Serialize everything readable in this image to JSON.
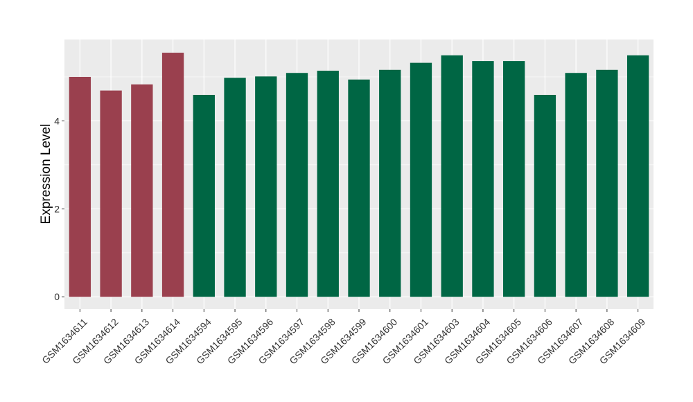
{
  "chart_data": {
    "type": "bar",
    "title": "",
    "xlabel": "",
    "ylabel": "Expression Level",
    "ylim": [
      -0.28,
      5.85
    ],
    "yticks": [
      0,
      2,
      4
    ],
    "grid": true,
    "legend": "none",
    "categories": [
      "GSM1634611",
      "GSM1634612",
      "GSM1634613",
      "GSM1634614",
      "GSM1634594",
      "GSM1634595",
      "GSM1634596",
      "GSM1634597",
      "GSM1634598",
      "GSM1634599",
      "GSM1634600",
      "GSM1634601",
      "GSM1634603",
      "GSM1634604",
      "GSM1634605",
      "GSM1634606",
      "GSM1634607",
      "GSM1634608",
      "GSM1634609"
    ],
    "values": [
      5.0,
      4.69,
      4.83,
      5.55,
      4.59,
      4.98,
      5.01,
      5.09,
      5.14,
      4.94,
      5.16,
      5.32,
      5.49,
      5.36,
      5.36,
      4.59,
      5.09,
      5.16,
      5.49
    ],
    "group_index": [
      0,
      0,
      0,
      0,
      1,
      1,
      1,
      1,
      1,
      1,
      1,
      1,
      1,
      1,
      1,
      1,
      1,
      1,
      1
    ],
    "group_colors": [
      "#9a404e",
      "#006644"
    ],
    "panel_background": "#ebebeb",
    "grid_color": "#ffffff"
  }
}
